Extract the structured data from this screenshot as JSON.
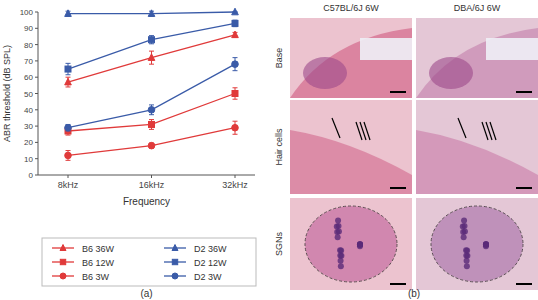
{
  "chart_data": {
    "type": "line",
    "x_label": "Frequency",
    "y_label": "ABR threshold (dB SPL)",
    "annotations": [
      "(a)"
    ],
    "categories": [
      "8kHz",
      "16kHz",
      "32kHz"
    ],
    "ylim": [
      0,
      100
    ],
    "yticks": [
      0,
      10,
      20,
      30,
      40,
      50,
      60,
      70,
      80,
      90,
      100
    ],
    "grid": false,
    "legend": "bottom",
    "series": [
      {
        "name": "B6 36W",
        "color": "#e03a3a",
        "marker": "triangle",
        "values": [
          57,
          72,
          86
        ],
        "errors": [
          3,
          4,
          1.5
        ]
      },
      {
        "name": "B6 12W",
        "color": "#e03a3a",
        "marker": "square",
        "values": [
          27,
          31,
          50
        ],
        "errors": [
          2.5,
          3,
          3.5
        ]
      },
      {
        "name": "B6 3W",
        "color": "#e03a3a",
        "marker": "circle",
        "values": [
          12,
          18,
          29
        ],
        "errors": [
          3,
          1.5,
          4
        ]
      },
      {
        "name": "D2 36W",
        "color": "#3a5ba8",
        "marker": "triangle",
        "values": [
          99,
          99,
          100
        ],
        "errors": [
          1.5,
          1.5,
          0
        ]
      },
      {
        "name": "D2 12W",
        "color": "#3a5ba8",
        "marker": "square",
        "values": [
          65,
          83,
          93
        ],
        "errors": [
          3.5,
          2.5,
          2
        ]
      },
      {
        "name": "D2 3W",
        "color": "#3a5ba8",
        "marker": "circle",
        "values": [
          29,
          40,
          68
        ],
        "errors": [
          2,
          3,
          4
        ]
      }
    ]
  },
  "panel_b": {
    "label": "(b)",
    "columns": [
      "C57BL/6J 6W",
      "DBA/6J 6W"
    ],
    "rows": [
      "Base",
      "Hair cells",
      "SGNs"
    ]
  }
}
